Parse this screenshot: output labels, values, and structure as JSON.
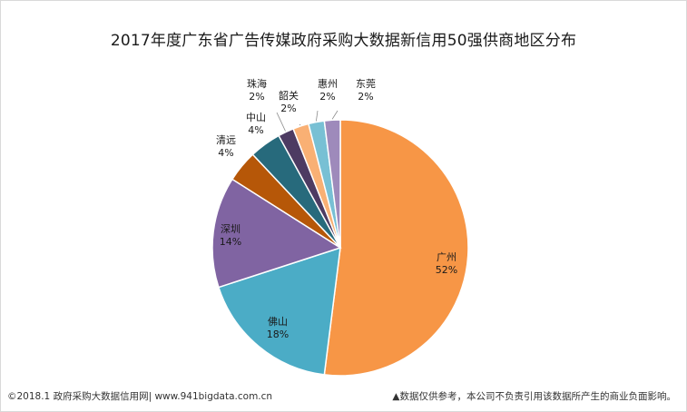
{
  "chart_data": {
    "type": "pie",
    "title": "2017年度广东省广告传媒政府采购大数据新信用50强供商地区分布",
    "slices": [
      {
        "name": "广州",
        "value": 52,
        "label": "52%",
        "color": "#F79646"
      },
      {
        "name": "佛山",
        "value": 18,
        "label": "18%",
        "color": "#4BACC6"
      },
      {
        "name": "深圳",
        "value": 14,
        "label": "14%",
        "color": "#8064A2"
      },
      {
        "name": "清远",
        "value": 4,
        "label": "4%",
        "color": "#B65708"
      },
      {
        "name": "中山",
        "value": 4,
        "label": "4%",
        "color": "#276A7C"
      },
      {
        "name": "珠海",
        "value": 2,
        "label": "2%",
        "color": "#4D3B62"
      },
      {
        "name": "韶关",
        "value": 2,
        "label": "2%",
        "color": "#F9B074"
      },
      {
        "name": "惠州",
        "value": 2,
        "label": "2%",
        "color": "#78C0D4"
      },
      {
        "name": "东莞",
        "value": 2,
        "label": "2%",
        "color": "#9E8ABB"
      }
    ]
  },
  "footer": {
    "source": "©2018.1 政府采购大数据信用网| www.941bigdata.com.cn",
    "disclaimer": "▲数据仅供参考，本公司不负责引用该数据所产生的商业负面影响。"
  }
}
